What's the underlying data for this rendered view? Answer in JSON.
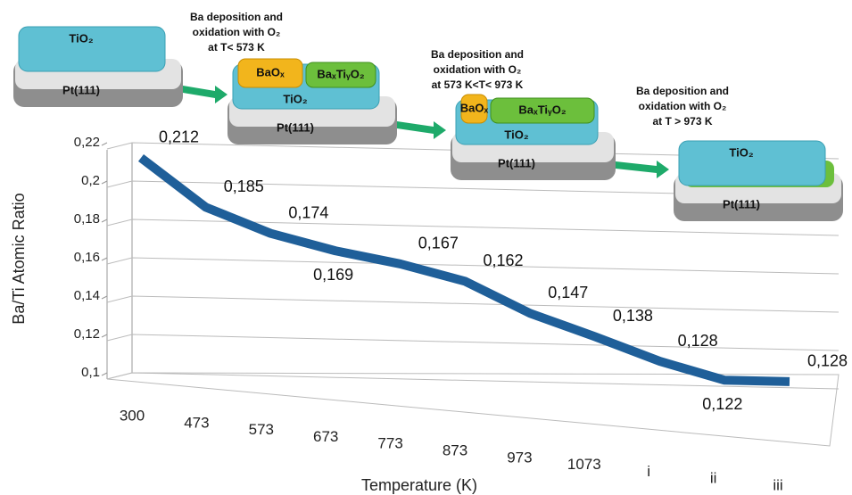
{
  "chart_data": {
    "type": "line",
    "y_label": "Ba/Ti Atomic Ratio",
    "x_label": "Temperature (K)",
    "categories": [
      "300",
      "473",
      "573",
      "673",
      "773",
      "873",
      "973",
      "1073",
      "i",
      "ii",
      "iii"
    ],
    "values": [
      0.212,
      0.185,
      0.174,
      0.169,
      0.167,
      0.162,
      0.147,
      0.138,
      0.128,
      0.122,
      0.128
    ],
    "value_labels": [
      "0,212",
      "0,185",
      "0,174",
      "0,169",
      "0,167",
      "0,162",
      "0,147",
      "0,138",
      "0,128",
      "0,122",
      "0,128"
    ],
    "color": "#1f5f99",
    "ylim": [
      0.1,
      0.22
    ],
    "yticks": [
      {
        "value": 0.1,
        "label": "0,1"
      },
      {
        "value": 0.12,
        "label": "0,12"
      },
      {
        "value": 0.14,
        "label": "0,14"
      },
      {
        "value": 0.16,
        "label": "0,16"
      },
      {
        "value": 0.18,
        "label": "0,18"
      },
      {
        "value": 0.2,
        "label": "0,2"
      },
      {
        "value": 0.22,
        "label": "0,22"
      }
    ],
    "grid": true
  },
  "diagrams": [
    {
      "layers": {
        "tio2": "TiO₂",
        "pt": "Pt(111)"
      }
    },
    {
      "annotation": [
        "Ba deposition and",
        "oxidation with O₂",
        "at T< 573 K"
      ],
      "layers": {
        "baox": "BaOₓ",
        "batio": "BaₓTiᵧO₂",
        "tio2": "TiO₂",
        "pt": "Pt(111)"
      }
    },
    {
      "annotation": [
        "Ba deposition and",
        "oxidation with O₂",
        "at 573 K<T< 973 K"
      ],
      "layers": {
        "baox": "BaOₓ",
        "batio": "BaₓTiᵧO₂",
        "tio2": "TiO₂",
        "pt": "Pt(111)"
      }
    },
    {
      "annotation": [
        "Ba deposition and",
        "oxidation with O₂",
        "at T > 973 K"
      ],
      "layers": {
        "tio2": "TiO₂",
        "pt": "Pt(111)"
      }
    }
  ]
}
